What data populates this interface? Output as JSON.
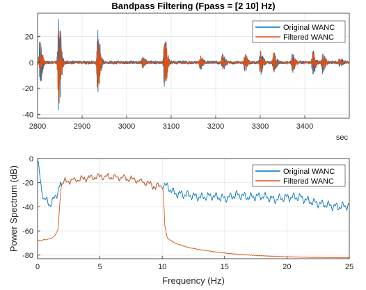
{
  "chart_data": [
    {
      "type": "line",
      "title": "Bandpass Filtering  (Fpass = [2 10] Hz)",
      "xlabel": "sec",
      "ylabel": "",
      "xlim": [
        2800,
        3500
      ],
      "ylim": [
        -43,
        38
      ],
      "xticks": [
        2800,
        2900,
        3000,
        3100,
        3200,
        3300,
        3400
      ],
      "yticks": [
        -40,
        -20,
        0,
        20
      ],
      "grid": true,
      "legend": "top-right",
      "bursts": [
        {
          "t": 2805,
          "amp": 18
        },
        {
          "t": 2847,
          "amp": 37
        },
        {
          "t": 2935,
          "amp": 26
        },
        {
          "t": 3035,
          "amp": 4
        },
        {
          "t": 3085,
          "amp": 22
        },
        {
          "t": 3165,
          "amp": 5
        },
        {
          "t": 3215,
          "amp": 6
        },
        {
          "t": 3265,
          "amp": 7
        },
        {
          "t": 3300,
          "amp": 9
        },
        {
          "t": 3330,
          "amp": 8
        },
        {
          "t": 3372,
          "amp": 7
        },
        {
          "t": 3418,
          "amp": 9
        },
        {
          "t": 3440,
          "amp": 8
        },
        {
          "t": 3478,
          "amp": 3
        }
      ],
      "series": [
        {
          "name": "Original WANC",
          "color": "#0072BD",
          "baseline_noise": 1.2
        },
        {
          "name": "Filtered WANC",
          "color": "#D95319",
          "baseline_noise": 0.8
        }
      ]
    },
    {
      "type": "line",
      "title": "",
      "xlabel": "Frequency (Hz)",
      "ylabel": "Power Spectrum (dB)",
      "xlim": [
        0,
        25
      ],
      "ylim": [
        -83,
        0
      ],
      "xticks": [
        0,
        5,
        10,
        15,
        20,
        25
      ],
      "yticks": [
        -80,
        -60,
        -40,
        -20,
        0
      ],
      "grid": true,
      "legend": "top-right",
      "series": [
        {
          "name": "Original WANC",
          "color": "#0072BD",
          "points": [
            [
              0,
              -2
            ],
            [
              0.1,
              -8
            ],
            [
              0.3,
              -25
            ],
            [
              0.5,
              -33
            ],
            [
              0.8,
              -36
            ],
            [
              1.0,
              -38
            ],
            [
              1.3,
              -34
            ],
            [
              1.6,
              -28
            ],
            [
              1.8,
              -22
            ],
            [
              2.2,
              -19
            ],
            [
              3,
              -18
            ],
            [
              4,
              -16
            ],
            [
              5,
              -15
            ],
            [
              6,
              -15
            ],
            [
              7,
              -16
            ],
            [
              8,
              -18
            ],
            [
              9,
              -21
            ],
            [
              9.5,
              -24
            ],
            [
              10,
              -21
            ],
            [
              10.5,
              -24
            ],
            [
              11,
              -29
            ],
            [
              12,
              -30
            ],
            [
              13,
              -32
            ],
            [
              14,
              -31
            ],
            [
              15,
              -33
            ],
            [
              16,
              -30
            ],
            [
              17,
              -32
            ],
            [
              18,
              -31
            ],
            [
              19,
              -34
            ],
            [
              20,
              -32
            ],
            [
              21,
              -32
            ],
            [
              22,
              -36
            ],
            [
              23,
              -38
            ],
            [
              24,
              -40
            ],
            [
              25,
              -39
            ]
          ]
        },
        {
          "name": "Filtered WANC",
          "color": "#D95319",
          "points": [
            [
              0,
              -68
            ],
            [
              0.5,
              -67.5
            ],
            [
              1.0,
              -66.5
            ],
            [
              1.4,
              -64
            ],
            [
              1.65,
              -58
            ],
            [
              1.8,
              -35
            ],
            [
              1.9,
              -22
            ],
            [
              2.2,
              -19
            ],
            [
              3,
              -18
            ],
            [
              4,
              -16
            ],
            [
              5,
              -15
            ],
            [
              6,
              -15
            ],
            [
              7,
              -16
            ],
            [
              8,
              -18
            ],
            [
              9,
              -21
            ],
            [
              9.5,
              -24
            ],
            [
              10,
              -21
            ],
            [
              10.1,
              -30
            ],
            [
              10.2,
              -55
            ],
            [
              10.4,
              -66
            ],
            [
              11,
              -70
            ],
            [
              12,
              -73.5
            ],
            [
              13,
              -75.5
            ],
            [
              14,
              -77
            ],
            [
              15,
              -78.3
            ],
            [
              16,
              -79.3
            ],
            [
              17,
              -80
            ],
            [
              18,
              -80.6
            ],
            [
              19,
              -81
            ],
            [
              20,
              -81.4
            ],
            [
              21,
              -81.7
            ],
            [
              22,
              -81.9
            ],
            [
              23,
              -82
            ],
            [
              24,
              -82.1
            ],
            [
              25,
              -82.2
            ]
          ]
        }
      ]
    }
  ]
}
